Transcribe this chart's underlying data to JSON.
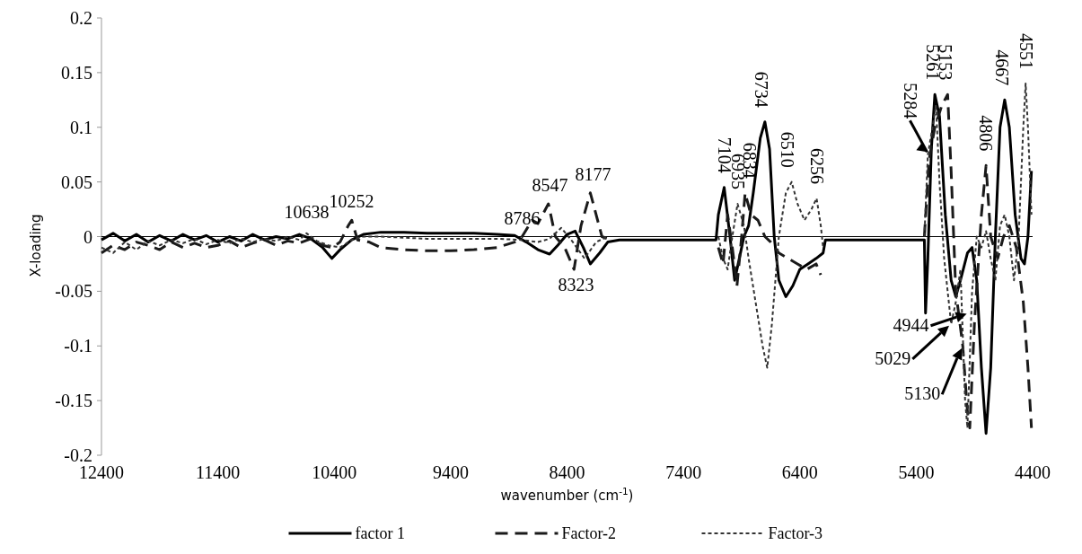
{
  "chart_data": {
    "type": "line",
    "xlabel": "wavenumber (cm$^{-1}$)",
    "ylabel": "X-loading",
    "xlim": [
      12400,
      4400
    ],
    "xticks": [
      12400,
      11400,
      10400,
      9400,
      8400,
      7400,
      6400,
      5400,
      4400
    ],
    "ylim": [
      -0.2,
      0.2
    ],
    "yticks": [
      -0.2,
      -0.15,
      -0.1,
      -0.05,
      0,
      0.05,
      0.1,
      0.15,
      0.2
    ],
    "grid": false,
    "legend": "bottom",
    "marker": "none",
    "ref_lines": [
      {
        "axis": "y",
        "value": 0,
        "color": "#000000"
      }
    ],
    "series": [
      {
        "name": "factor 1",
        "color": "#000000",
        "line_style": "solid",
        "x": [
          12400,
          12300,
          12200,
          12100,
          12000,
          11900,
          11800,
          11700,
          11600,
          11500,
          11400,
          11300,
          11200,
          11100,
          11000,
          10900,
          10800,
          10700,
          10600,
          10500,
          10420,
          10350,
          10250,
          10150,
          10000,
          9800,
          9600,
          9400,
          9200,
          9000,
          8850,
          8750,
          8650,
          8550,
          8480,
          8400,
          8330,
          8260,
          8200,
          8120,
          8050,
          7950,
          7500,
          7120,
          7100,
          7050,
          7000,
          6960,
          6920,
          6880,
          6840,
          6800,
          6740,
          6700,
          6660,
          6620,
          6580,
          6520,
          6460,
          6400,
          6330,
          6260,
          6200,
          6180,
          5400,
          5330,
          5320,
          5300,
          5270,
          5240,
          5200,
          5150,
          5100,
          5060,
          5020,
          4960,
          4920,
          4880,
          4840,
          4800,
          4760,
          4720,
          4680,
          4640,
          4600,
          4550,
          4500,
          4470,
          4440,
          4410
        ],
        "values": [
          -0.003,
          0.003,
          -0.004,
          0.002,
          -0.005,
          0.001,
          -0.004,
          0.002,
          -0.003,
          0.001,
          -0.005,
          0,
          -0.004,
          0.002,
          -0.003,
          0,
          -0.002,
          0.002,
          -0.002,
          -0.01,
          -0.02,
          -0.012,
          -0.003,
          0.002,
          0.004,
          0.004,
          0.003,
          0.003,
          0.003,
          0.002,
          0.001,
          -0.005,
          -0.012,
          -0.016,
          -0.008,
          0.002,
          0.005,
          -0.01,
          -0.025,
          -0.015,
          -0.005,
          -0.003,
          -0.003,
          -0.003,
          0.02,
          0.045,
          0,
          -0.04,
          -0.02,
          0,
          0.01,
          0.04,
          0.09,
          0.105,
          0.08,
          0,
          -0.04,
          -0.055,
          -0.045,
          -0.03,
          -0.025,
          -0.02,
          -0.015,
          -0.003,
          -0.003,
          -0.003,
          -0.07,
          -0.02,
          0.08,
          0.13,
          0.11,
          0.02,
          -0.04,
          -0.055,
          -0.04,
          -0.015,
          -0.01,
          -0.04,
          -0.12,
          -0.18,
          -0.12,
          0,
          0.1,
          0.125,
          0.1,
          0.02,
          -0.02,
          -0.025,
          0,
          0.06
        ]
      },
      {
        "name": "Factor-2",
        "color": "#1a1a1a",
        "line_style": "dashed",
        "x": [
          12400,
          12300,
          12200,
          12100,
          12000,
          11900,
          11800,
          11700,
          11600,
          11500,
          11400,
          11300,
          11200,
          11100,
          11000,
          10900,
          10800,
          10700,
          10600,
          10500,
          10420,
          10350,
          10280,
          10250,
          10200,
          10100,
          10000,
          9800,
          9600,
          9400,
          9200,
          9000,
          8850,
          8786,
          8700,
          8650,
          8560,
          8500,
          8420,
          8340,
          8280,
          8200,
          8150,
          8100,
          8050,
          7900,
          7100,
          7060,
          7020,
          6980,
          6940,
          6900,
          6870,
          6820,
          6760,
          6700,
          6650,
          6580,
          6500,
          6420,
          6340,
          6260,
          6220,
          6000,
          5330,
          5290,
          5240,
          5180,
          5130,
          5100,
          5060,
          5000,
          4960,
          4940,
          4900,
          4840,
          4800,
          4760,
          4700,
          4650,
          4600,
          4540,
          4480,
          4440,
          4410
        ],
        "values": [
          -0.015,
          -0.008,
          -0.012,
          -0.005,
          -0.008,
          -0.012,
          -0.005,
          -0.01,
          -0.006,
          -0.01,
          -0.008,
          -0.004,
          -0.01,
          -0.006,
          -0.003,
          -0.008,
          -0.004,
          -0.006,
          -0.002,
          -0.008,
          -0.01,
          -0.005,
          0.01,
          0.015,
          -0.003,
          -0.005,
          -0.01,
          -0.012,
          -0.013,
          -0.013,
          -0.012,
          -0.01,
          -0.005,
          0,
          0.015,
          0.012,
          0.03,
          0,
          -0.01,
          -0.03,
          0.01,
          0.04,
          0.02,
          0,
          -0.002,
          null,
          -0.01,
          -0.025,
          0.02,
          -0.01,
          -0.045,
          0,
          0.04,
          0.02,
          0.015,
          0,
          -0.005,
          -0.015,
          -0.02,
          -0.025,
          -0.03,
          -0.025,
          -0.035,
          null,
          0,
          0.07,
          0.1,
          0.12,
          0.13,
          0.06,
          -0.05,
          -0.1,
          -0.16,
          -0.175,
          -0.08,
          0.02,
          0.065,
          0,
          -0.02,
          0,
          0.01,
          -0.01,
          -0.06,
          -0.12,
          -0.175
        ]
      },
      {
        "name": "Factor-3",
        "color": "#333333",
        "line_style": "dotted",
        "x": [
          12400,
          12300,
          12200,
          12100,
          12000,
          11900,
          11800,
          11700,
          11600,
          11500,
          11400,
          11300,
          11200,
          11100,
          11000,
          10900,
          10800,
          10700,
          10638,
          10550,
          10450,
          10350,
          10250,
          10150,
          10000,
          9800,
          9600,
          9400,
          9200,
          9000,
          8800,
          8650,
          8550,
          8450,
          8350,
          8250,
          8150,
          8050,
          7900,
          7100,
          7060,
          7020,
          6980,
          6935,
          6880,
          6840,
          6780,
          6720,
          6680,
          6640,
          6580,
          6520,
          6470,
          6420,
          6360,
          6300,
          6256,
          6220,
          6200,
          6000,
          5330,
          5300,
          5260,
          5230,
          5200,
          5160,
          5100,
          5060,
          5020,
          4980,
          4960,
          4920,
          4880,
          4840,
          4800,
          4760,
          4720,
          4680,
          4640,
          4600,
          4560,
          4520,
          4480,
          4460,
          4440,
          4410
        ],
        "values": [
          -0.01,
          -0.015,
          -0.005,
          -0.012,
          -0.004,
          -0.008,
          -0.003,
          -0.006,
          -0.002,
          -0.007,
          -0.003,
          -0.006,
          -0.002,
          -0.005,
          -0.002,
          -0.004,
          0,
          -0.003,
          0.003,
          -0.004,
          -0.008,
          -0.01,
          -0.003,
          0,
          0,
          -0.001,
          -0.002,
          -0.002,
          -0.002,
          -0.002,
          -0.003,
          -0.005,
          -0.002,
          0.008,
          -0.005,
          -0.02,
          -0.005,
          0,
          null,
          0,
          -0.02,
          -0.03,
          0,
          0.03,
          0.01,
          -0.02,
          -0.06,
          -0.1,
          -0.12,
          -0.08,
          0,
          0.04,
          0.05,
          0.03,
          0.015,
          0.025,
          0.035,
          0.01,
          -0.01,
          null,
          0,
          0.075,
          0.1,
          0.12,
          0.05,
          -0.02,
          -0.08,
          -0.06,
          -0.03,
          -0.15,
          -0.175,
          -0.05,
          0,
          -0.01,
          0.005,
          -0.02,
          -0.04,
          0.01,
          0.02,
          0,
          -0.04,
          0,
          0.1,
          0.14,
          0.1,
          0.02
        ]
      }
    ],
    "annotations": [
      {
        "text": "10638",
        "x": 10638,
        "y": 0.005
      },
      {
        "text": "10252",
        "x": 10252,
        "y": 0.015
      },
      {
        "text": "8786",
        "x": 8786,
        "y": 0
      },
      {
        "text": "8547",
        "x": 8547,
        "y": 0.03
      },
      {
        "text": "8177",
        "x": 8177,
        "y": 0.04
      },
      {
        "text": "8323",
        "x": 8323,
        "y": -0.03
      },
      {
        "text": "7104",
        "x": 7050,
        "y": 0.045
      },
      {
        "text": "6935",
        "x": 6935,
        "y": 0.03
      },
      {
        "text": "6834",
        "x": 6834,
        "y": 0.04
      },
      {
        "text": "6734",
        "x": 6734,
        "y": 0.105
      },
      {
        "text": "6510",
        "x": 6510,
        "y": 0.05
      },
      {
        "text": "6256",
        "x": 6256,
        "y": 0.035
      },
      {
        "text": "5284",
        "x": 5284,
        "y": 0.075
      },
      {
        "text": "5261",
        "x": 5261,
        "y": 0.13
      },
      {
        "text": "5153",
        "x": 5153,
        "y": 0.13
      },
      {
        "text": "4806",
        "x": 4806,
        "y": 0.065
      },
      {
        "text": "4667",
        "x": 4667,
        "y": 0.125
      },
      {
        "text": "4551",
        "x": 4460,
        "y": 0.14
      },
      {
        "text": "4944",
        "x": 4944,
        "y": -0.07
      },
      {
        "text": "5029",
        "x": 5100,
        "y": -0.08
      },
      {
        "text": "5130",
        "x": 5000,
        "y": -0.1
      }
    ]
  }
}
